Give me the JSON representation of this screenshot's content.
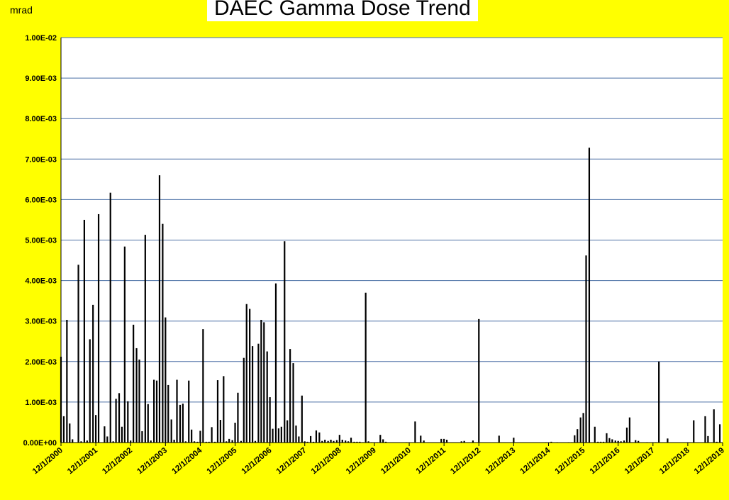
{
  "chart_data": {
    "type": "bar",
    "title": "DAEC Gamma Dose Trend",
    "ylabel": "mrad",
    "xlabel": "",
    "ylim": [
      0,
      0.01
    ],
    "y_tick_labels": [
      "0.00E+00",
      "1.00E-03",
      "2.00E-03",
      "3.00E-03",
      "4.00E-03",
      "5.00E-03",
      "6.00E-03",
      "7.00E-03",
      "8.00E-03",
      "9.00E-03",
      "1.00E-02"
    ],
    "x_tick_labels": [
      "12/1/2000",
      "12/1/2001",
      "12/1/2002",
      "12/1/2003",
      "12/1/2004",
      "12/1/2005",
      "12/1/2006",
      "12/1/2007",
      "12/1/2008",
      "12/1/2009",
      "12/1/2010",
      "12/1/2011",
      "12/1/2012",
      "12/1/2013",
      "12/1/2014",
      "12/1/2015",
      "12/1/2016",
      "12/1/2017",
      "12/1/2018",
      "12/1/2019"
    ],
    "xlim": [
      2000.0,
      2019.0
    ],
    "grid": true,
    "bar_color": "#000000",
    "gridline_color": "#4a6fa5",
    "background_color": "#ffff00",
    "points": [
      [
        2000.0,
        0.00212
      ],
      [
        2000.08,
        0.00065
      ],
      [
        2000.17,
        0.00303
      ],
      [
        2000.25,
        0.00047
      ],
      [
        2000.33,
        8e-05
      ],
      [
        2000.5,
        0.00439
      ],
      [
        2000.58,
        3e-05
      ],
      [
        2000.67,
        0.0055
      ],
      [
        2000.75,
        5e-05
      ],
      [
        2000.83,
        0.00255
      ],
      [
        2000.92,
        0.0034
      ],
      [
        2001.0,
        0.00068
      ],
      [
        2001.08,
        0.00564
      ],
      [
        2001.25,
        0.0004
      ],
      [
        2001.33,
        0.00015
      ],
      [
        2001.42,
        0.00617
      ],
      [
        2001.5,
        3e-05
      ],
      [
        2001.58,
        0.00108
      ],
      [
        2001.67,
        0.00122
      ],
      [
        2001.75,
        0.00039
      ],
      [
        2001.83,
        0.00484
      ],
      [
        2001.92,
        0.00102
      ],
      [
        2002.0,
        5e-05
      ],
      [
        2002.08,
        0.00291
      ],
      [
        2002.17,
        0.00233
      ],
      [
        2002.25,
        0.00205
      ],
      [
        2002.33,
        0.00028
      ],
      [
        2002.42,
        0.00513
      ],
      [
        2002.5,
        0.00095
      ],
      [
        2002.58,
        5e-05
      ],
      [
        2002.67,
        0.00155
      ],
      [
        2002.75,
        0.00153
      ],
      [
        2002.83,
        0.0066
      ],
      [
        2002.92,
        0.0054
      ],
      [
        2003.0,
        0.00309
      ],
      [
        2003.08,
        0.00142
      ],
      [
        2003.17,
        0.00057
      ],
      [
        2003.25,
        7e-05
      ],
      [
        2003.33,
        0.00155
      ],
      [
        2003.42,
        0.00093
      ],
      [
        2003.5,
        0.00096
      ],
      [
        2003.58,
        3e-05
      ],
      [
        2003.67,
        0.00153
      ],
      [
        2003.75,
        0.00032
      ],
      [
        2003.83,
        3e-05
      ],
      [
        2003.92,
        2e-05
      ],
      [
        2004.0,
        0.00029
      ],
      [
        2004.08,
        0.0028
      ],
      [
        2004.17,
        2e-05
      ],
      [
        2004.25,
        2e-05
      ],
      [
        2004.33,
        0.00038
      ],
      [
        2004.42,
        2e-05
      ],
      [
        2004.5,
        0.00154
      ],
      [
        2004.58,
        0.00056
      ],
      [
        2004.67,
        0.00164
      ],
      [
        2004.75,
        3e-05
      ],
      [
        2004.83,
        9e-05
      ],
      [
        2004.92,
        6e-05
      ],
      [
        2005.0,
        0.00049
      ],
      [
        2005.08,
        0.00123
      ],
      [
        2005.17,
        4e-05
      ],
      [
        2005.25,
        0.00209
      ],
      [
        2005.33,
        0.00342
      ],
      [
        2005.42,
        0.0033
      ],
      [
        2005.5,
        0.00238
      ],
      [
        2005.58,
        4e-05
      ],
      [
        2005.67,
        0.00244
      ],
      [
        2005.75,
        0.00303
      ],
      [
        2005.83,
        0.00297
      ],
      [
        2005.92,
        0.00225
      ],
      [
        2006.0,
        0.00112
      ],
      [
        2006.08,
        0.00034
      ],
      [
        2006.17,
        0.00393
      ],
      [
        2006.25,
        0.00035
      ],
      [
        2006.33,
        0.00039
      ],
      [
        2006.42,
        0.00497
      ],
      [
        2006.5,
        0.00055
      ],
      [
        2006.58,
        0.00231
      ],
      [
        2006.67,
        0.00196
      ],
      [
        2006.75,
        0.00042
      ],
      [
        2006.83,
        0.00015
      ],
      [
        2006.92,
        0.00116
      ],
      [
        2007.0,
        3e-05
      ],
      [
        2007.08,
        2e-05
      ],
      [
        2007.17,
        0.00016
      ],
      [
        2007.25,
        2e-05
      ],
      [
        2007.33,
        0.0003
      ],
      [
        2007.42,
        0.00025
      ],
      [
        2007.5,
        4e-05
      ],
      [
        2007.58,
        7e-05
      ],
      [
        2007.67,
        4e-05
      ],
      [
        2007.75,
        7e-05
      ],
      [
        2007.83,
        4e-05
      ],
      [
        2007.92,
        6e-05
      ],
      [
        2008.0,
        0.00019
      ],
      [
        2008.08,
        7e-05
      ],
      [
        2008.17,
        5e-05
      ],
      [
        2008.25,
        3e-05
      ],
      [
        2008.33,
        0.00012
      ],
      [
        2008.42,
        2e-05
      ],
      [
        2008.5,
        2e-05
      ],
      [
        2008.58,
        2e-05
      ],
      [
        2008.67,
        1e-05
      ],
      [
        2008.75,
        0.0037
      ],
      [
        2008.83,
        3e-05
      ],
      [
        2008.92,
        1e-05
      ],
      [
        2009.08,
        1e-05
      ],
      [
        2009.17,
        0.00019
      ],
      [
        2009.25,
        8e-05
      ],
      [
        2009.33,
        2e-05
      ],
      [
        2009.92,
        1e-05
      ],
      [
        2010.17,
        0.00052
      ],
      [
        2010.25,
        1e-05
      ],
      [
        2010.33,
        0.00017
      ],
      [
        2010.42,
        5e-05
      ],
      [
        2010.92,
        9e-05
      ],
      [
        2011.0,
        9e-05
      ],
      [
        2011.08,
        7e-05
      ],
      [
        2011.5,
        3e-05
      ],
      [
        2011.58,
        4e-05
      ],
      [
        2011.83,
        5e-05
      ],
      [
        2012.0,
        0.00305
      ],
      [
        2012.58,
        0.00017
      ],
      [
        2013.0,
        0.00012
      ],
      [
        2013.92,
        1e-05
      ],
      [
        2014.08,
        2e-05
      ],
      [
        2014.25,
        1e-05
      ],
      [
        2014.58,
        1e-05
      ],
      [
        2014.67,
        1e-05
      ],
      [
        2014.75,
        0.00018
      ],
      [
        2014.83,
        0.00033
      ],
      [
        2014.92,
        0.00062
      ],
      [
        2015.0,
        0.00073
      ],
      [
        2015.08,
        0.00462
      ],
      [
        2015.17,
        0.00728
      ],
      [
        2015.33,
        0.00039
      ],
      [
        2015.42,
        2e-05
      ],
      [
        2015.5,
        2e-05
      ],
      [
        2015.58,
        2e-05
      ],
      [
        2015.67,
        0.00023
      ],
      [
        2015.75,
        0.00011
      ],
      [
        2015.83,
        8e-05
      ],
      [
        2015.92,
        5e-05
      ],
      [
        2016.0,
        4e-05
      ],
      [
        2016.08,
        3e-05
      ],
      [
        2016.17,
        5e-05
      ],
      [
        2016.25,
        0.00037
      ],
      [
        2016.33,
        0.00062
      ],
      [
        2016.5,
        6e-05
      ],
      [
        2016.58,
        4e-05
      ],
      [
        2016.83,
        1e-05
      ],
      [
        2017.08,
        1e-05
      ],
      [
        2017.17,
        0.002
      ],
      [
        2017.42,
        0.0001
      ],
      [
        2018.17,
        0.00055
      ],
      [
        2018.5,
        0.00065
      ],
      [
        2018.58,
        0.00016
      ],
      [
        2018.75,
        0.00082
      ],
      [
        2018.83,
        2e-05
      ],
      [
        2018.92,
        0.00045
      ]
    ]
  }
}
